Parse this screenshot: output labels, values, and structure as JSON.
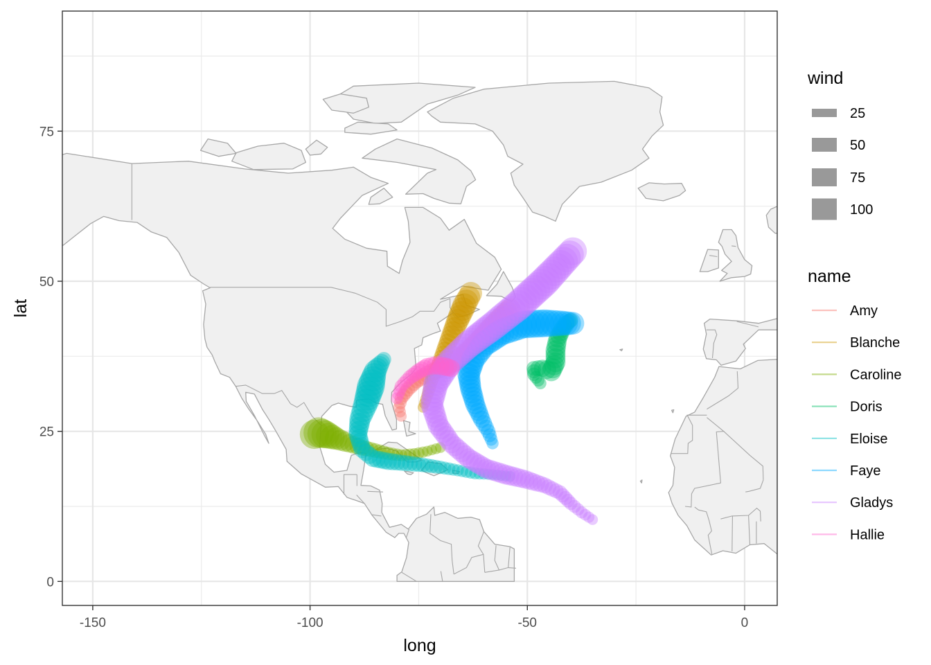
{
  "chart_data": {
    "type": "scatter",
    "xlabel": "long",
    "ylabel": "lat",
    "xlim": [
      -157,
      7.5
    ],
    "ylim": [
      -4,
      95
    ],
    "x_ticks": [
      -150,
      -100,
      -50,
      0
    ],
    "x_tick_labels": [
      "-150",
      "-100",
      "-50",
      "0"
    ],
    "y_ticks": [
      0,
      25,
      50,
      75
    ],
    "y_tick_labels": [
      "0",
      "25",
      "50",
      "75"
    ],
    "grid": true,
    "background_map": "North America, Greenland and West Africa outline",
    "map_fill": "#f0f0f0",
    "map_stroke": "#a6a6a6",
    "point_alpha": 0.4,
    "size_legend": {
      "title": "wind",
      "values": [
        25,
        50,
        75,
        100
      ],
      "labels": [
        "25",
        "50",
        "75",
        "100"
      ],
      "color": "#999999"
    },
    "color_legend": {
      "title": "name",
      "placement": "right"
    },
    "series": [
      {
        "name": "Amy",
        "color": "#F8766D",
        "track": [
          [
            -79.0,
            27.5,
            25
          ],
          [
            -79.5,
            29.0,
            30
          ],
          [
            -79.0,
            30.5,
            35
          ],
          [
            -77.5,
            32.0,
            40
          ],
          [
            -75.5,
            33.5,
            45
          ],
          [
            -73.0,
            34.5,
            50
          ],
          [
            -70.0,
            35.5,
            55
          ],
          [
            -67.0,
            36.5,
            60
          ],
          [
            -64.0,
            38.0,
            65
          ],
          [
            -61.0,
            40.0,
            70
          ],
          [
            -58.5,
            42.0,
            70
          ],
          [
            -56.0,
            44.0,
            65
          ],
          [
            -54.0,
            45.5,
            60
          ]
        ]
      },
      {
        "name": "Blanche",
        "color": "#CD9600",
        "track": [
          [
            -74.0,
            29.0,
            25
          ],
          [
            -73.0,
            31.0,
            30
          ],
          [
            -72.0,
            33.5,
            35
          ],
          [
            -70.5,
            36.0,
            40
          ],
          [
            -69.0,
            38.5,
            50
          ],
          [
            -67.5,
            41.0,
            60
          ],
          [
            -66.0,
            43.5,
            70
          ],
          [
            -64.5,
            46.0,
            75
          ],
          [
            -63.0,
            48.0,
            70
          ]
        ]
      },
      {
        "name": "Caroline",
        "color": "#7CAE00",
        "track": [
          [
            -70.0,
            22.3,
            25
          ],
          [
            -73.0,
            21.7,
            25
          ],
          [
            -76.0,
            21.2,
            30
          ],
          [
            -79.0,
            21.0,
            30
          ],
          [
            -82.0,
            21.3,
            35
          ],
          [
            -85.0,
            21.8,
            40
          ],
          [
            -88.0,
            22.3,
            45
          ],
          [
            -91.0,
            23.0,
            55
          ],
          [
            -94.0,
            23.8,
            70
          ],
          [
            -96.5,
            24.5,
            90
          ],
          [
            -98.0,
            24.8,
            100
          ],
          [
            -99.0,
            24.5,
            95
          ]
        ]
      },
      {
        "name": "Doris",
        "color": "#00BE67",
        "track": [
          [
            -47.0,
            33.0,
            30
          ],
          [
            -48.5,
            34.5,
            35
          ],
          [
            -48.5,
            35.5,
            40
          ],
          [
            -46.5,
            35.5,
            50
          ],
          [
            -44.5,
            35.0,
            60
          ],
          [
            -43.5,
            36.5,
            60
          ],
          [
            -43.5,
            38.5,
            60
          ],
          [
            -43.0,
            40.5,
            55
          ],
          [
            -42.0,
            42.0,
            50
          ],
          [
            -41.0,
            43.0,
            45
          ],
          [
            -40.0,
            43.5,
            40
          ]
        ]
      },
      {
        "name": "Eloise",
        "color": "#00BFC4",
        "track": [
          [
            -54.0,
            17.5,
            25
          ],
          [
            -58.0,
            17.8,
            25
          ],
          [
            -62.0,
            18.0,
            30
          ],
          [
            -66.0,
            18.5,
            30
          ],
          [
            -70.0,
            19.0,
            35
          ],
          [
            -74.0,
            19.4,
            40
          ],
          [
            -78.0,
            19.7,
            45
          ],
          [
            -82.0,
            20.0,
            50
          ],
          [
            -85.5,
            20.5,
            50
          ],
          [
            -88.0,
            22.0,
            50
          ],
          [
            -89.0,
            24.5,
            55
          ],
          [
            -88.5,
            27.0,
            65
          ],
          [
            -87.0,
            30.0,
            80
          ],
          [
            -86.0,
            32.5,
            90
          ],
          [
            -85.0,
            35.0,
            70
          ],
          [
            -83.0,
            37.0,
            40
          ]
        ]
      },
      {
        "name": "Faye",
        "color": "#00A9FF",
        "track": [
          [
            -58.0,
            23.0,
            30
          ],
          [
            -59.0,
            25.0,
            40
          ],
          [
            -60.5,
            27.0,
            50
          ],
          [
            -62.0,
            29.5,
            60
          ],
          [
            -63.0,
            32.0,
            65
          ],
          [
            -63.5,
            34.5,
            70
          ],
          [
            -62.5,
            37.0,
            75
          ],
          [
            -60.0,
            39.5,
            80
          ],
          [
            -56.0,
            41.5,
            85
          ],
          [
            -51.0,
            42.8,
            90
          ],
          [
            -46.0,
            43.0,
            90
          ],
          [
            -42.0,
            43.0,
            80
          ],
          [
            -39.5,
            43.0,
            70
          ]
        ]
      },
      {
        "name": "Gladys",
        "color": "#C77CFF",
        "track": [
          [
            -35.0,
            10.3,
            25
          ],
          [
            -37.5,
            11.5,
            30
          ],
          [
            -40.0,
            13.0,
            35
          ],
          [
            -42.5,
            14.8,
            40
          ],
          [
            -46.0,
            16.0,
            45
          ],
          [
            -50.5,
            17.0,
            55
          ],
          [
            -55.0,
            17.8,
            60
          ],
          [
            -59.5,
            18.8,
            60
          ],
          [
            -63.5,
            20.5,
            60
          ],
          [
            -67.5,
            23.0,
            60
          ],
          [
            -70.5,
            26.0,
            65
          ],
          [
            -72.0,
            29.5,
            70
          ],
          [
            -71.0,
            33.0,
            80
          ],
          [
            -68.0,
            36.5,
            85
          ],
          [
            -63.5,
            39.5,
            90
          ],
          [
            -58.0,
            42.5,
            95
          ],
          [
            -52.0,
            46.0,
            100
          ],
          [
            -46.0,
            50.0,
            100
          ],
          [
            -39.5,
            55.0,
            90
          ]
        ]
      },
      {
        "name": "Hallie",
        "color": "#FF61CC",
        "track": [
          [
            -80.0,
            30.5,
            30
          ],
          [
            -79.0,
            32.5,
            35
          ],
          [
            -77.0,
            34.0,
            40
          ],
          [
            -75.0,
            35.0,
            45
          ],
          [
            -73.0,
            35.8,
            50
          ],
          [
            -71.0,
            36.0,
            55
          ],
          [
            -69.0,
            35.8,
            55
          ],
          [
            -67.5,
            35.5,
            50
          ]
        ]
      }
    ]
  }
}
